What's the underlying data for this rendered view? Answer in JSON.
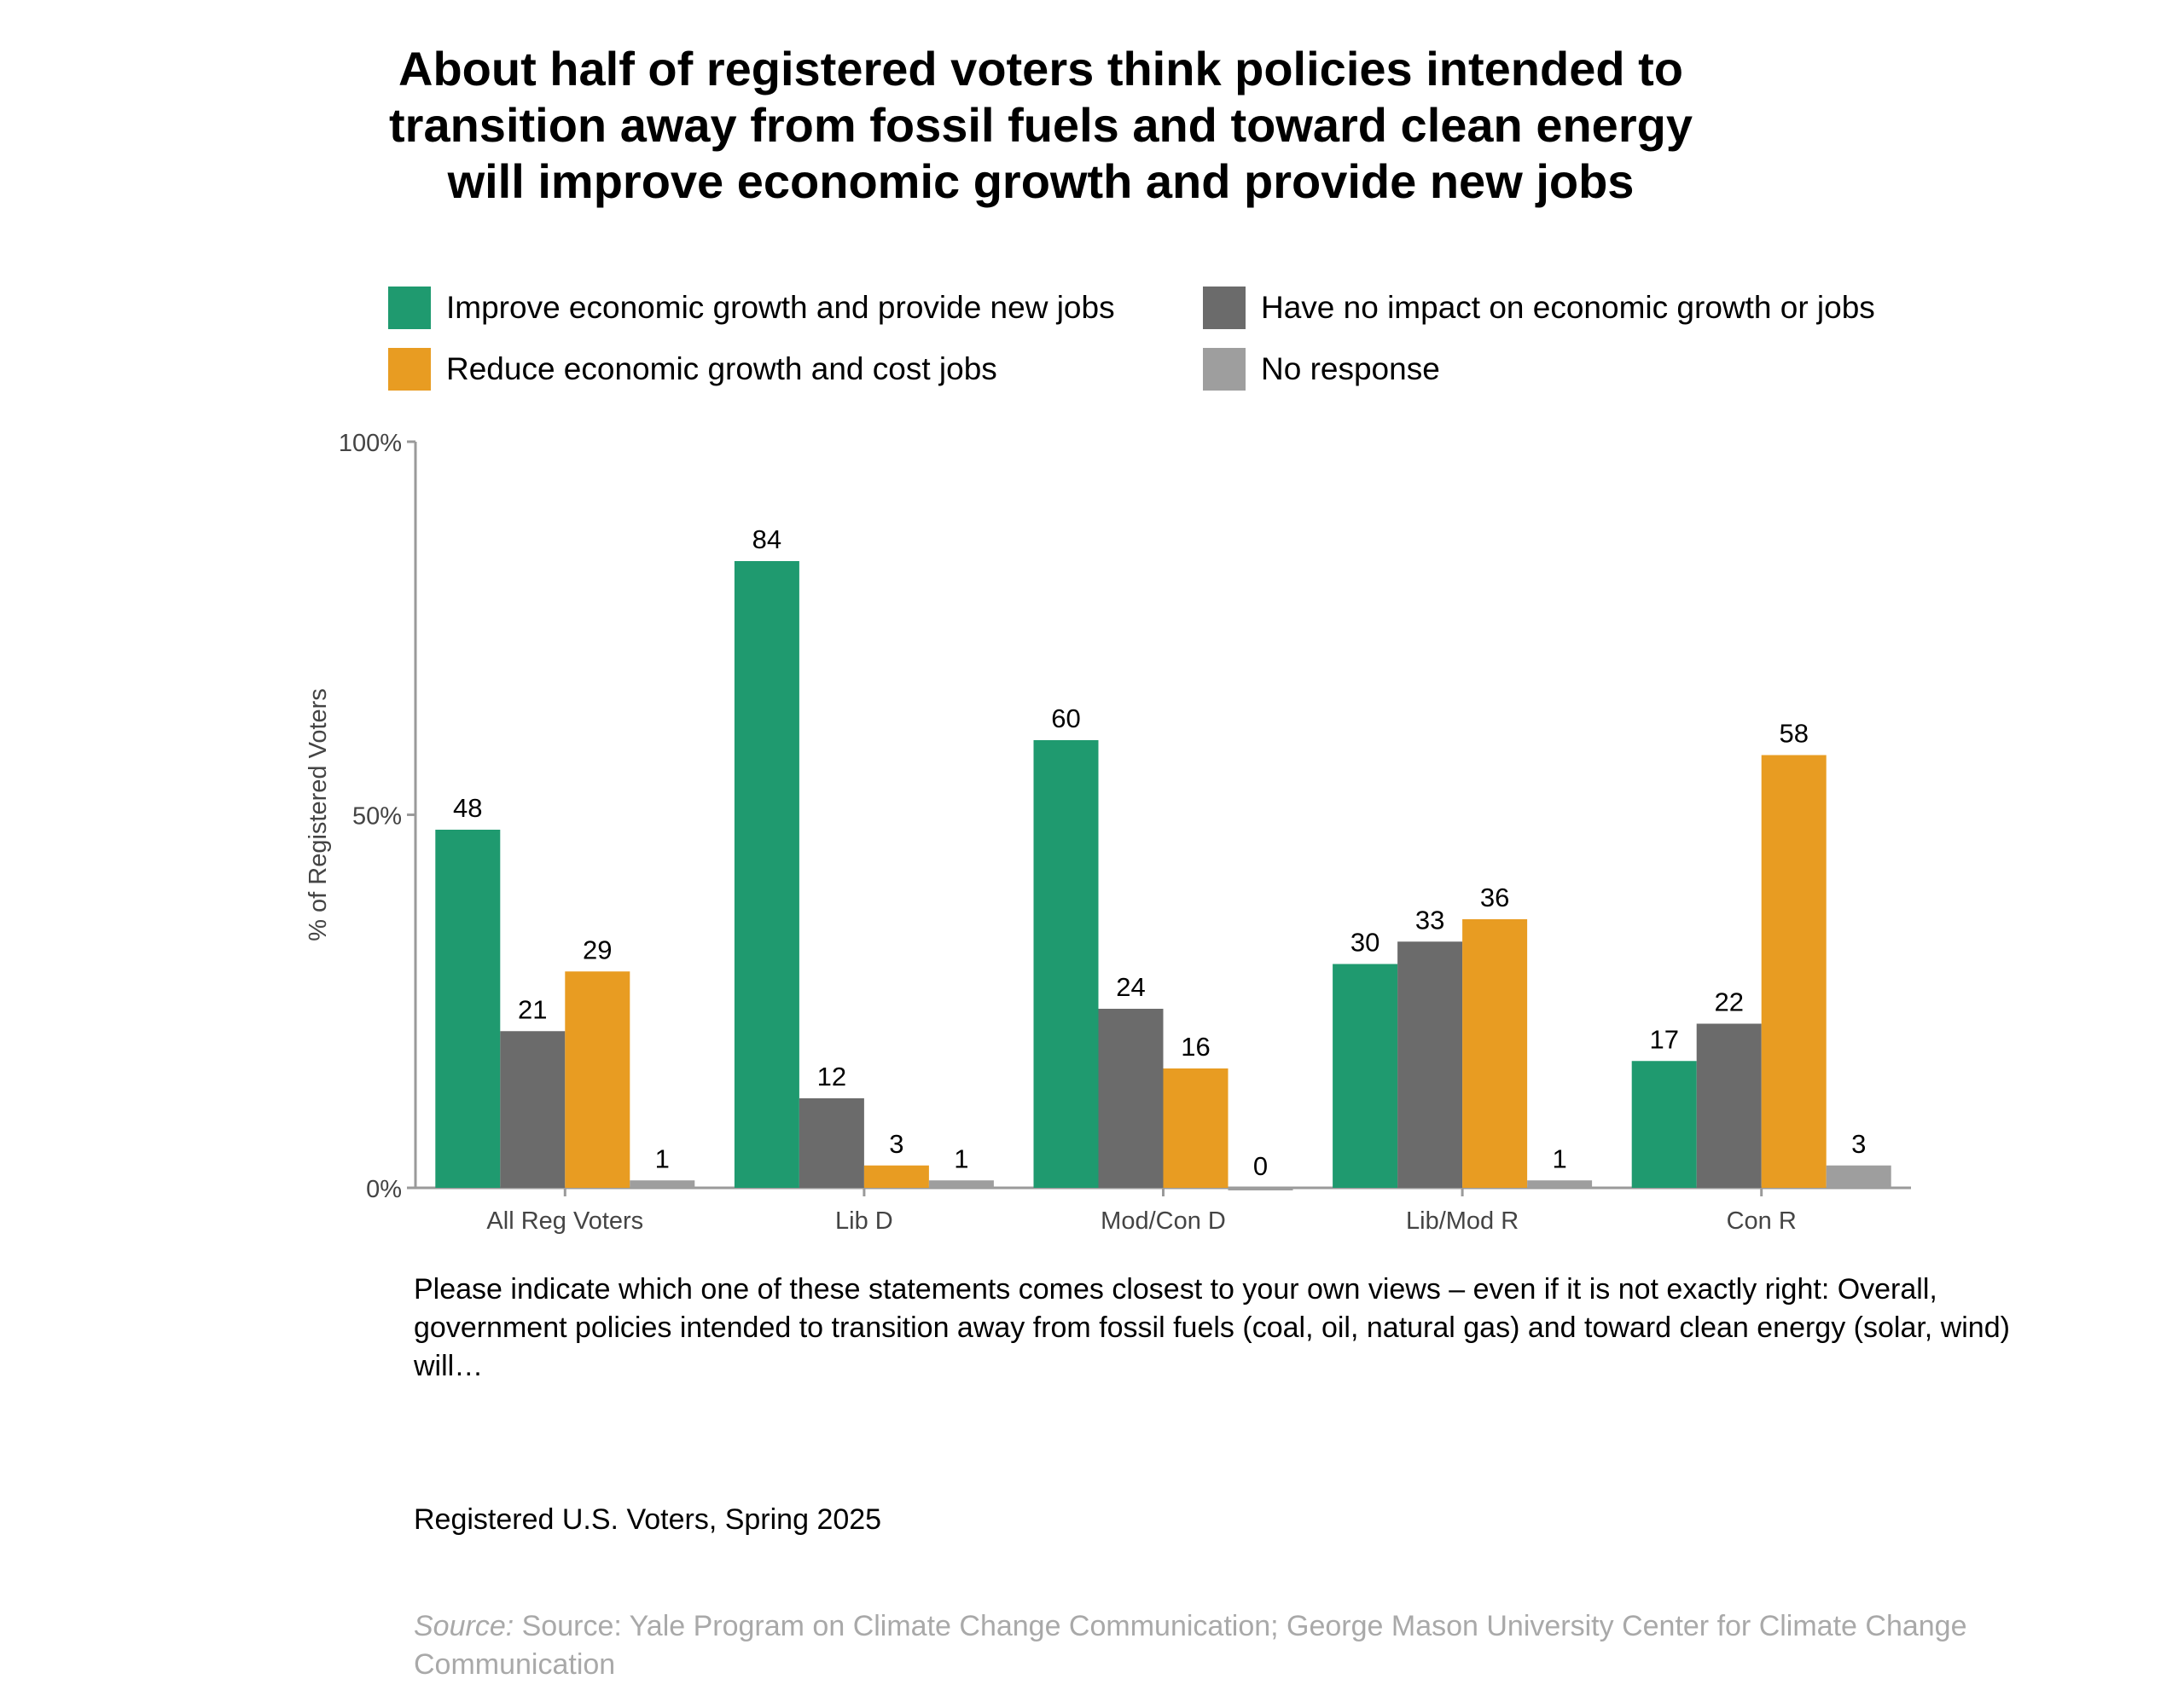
{
  "title_lines": [
    "About half of registered voters think policies intended to",
    "transition away from fossil fuels and toward clean energy",
    "will improve economic growth and provide new jobs"
  ],
  "legend": [
    {
      "label": "Improve economic growth and provide new jobs",
      "color": "#1f9a6f"
    },
    {
      "label": "Have no impact on economic growth or jobs",
      "color": "#6b6b6b"
    },
    {
      "label": "Reduce economic growth and cost jobs",
      "color": "#e89c22"
    },
    {
      "label": "No response",
      "color": "#9e9e9e"
    }
  ],
  "chart_data": {
    "type": "bar",
    "categories": [
      "All Reg Voters",
      "Lib D",
      "Mod/Con D",
      "Lib/Mod R",
      "Con R"
    ],
    "series": [
      {
        "name": "Improve economic growth and provide new jobs",
        "color": "#1f9a6f",
        "values": [
          48,
          84,
          60,
          30,
          17
        ]
      },
      {
        "name": "Have no impact on economic growth or jobs",
        "color": "#6b6b6b",
        "values": [
          21,
          12,
          24,
          33,
          22
        ]
      },
      {
        "name": "Reduce economic growth and cost jobs",
        "color": "#e89c22",
        "values": [
          29,
          3,
          16,
          36,
          58
        ]
      },
      {
        "name": "No response",
        "color": "#9e9e9e",
        "values": [
          1,
          1,
          0,
          1,
          3
        ]
      }
    ],
    "ylabel": "% of Registered Voters",
    "yticks": [
      {
        "value": 0,
        "label": "0%"
      },
      {
        "value": 50,
        "label": "50%"
      },
      {
        "value": 100,
        "label": "100%"
      }
    ],
    "ylim": [
      0,
      100
    ],
    "grid": false,
    "legend_position": "top"
  },
  "question_text": "Please indicate which one of these statements comes closest to your own views – even if it is not exactly right: Overall, government policies intended to transition away from fossil fuels (coal, oil, natural gas) and toward clean energy (solar, wind) will…",
  "population_text": "Registered U.S. Voters, Spring 2025",
  "source": {
    "label": "Source:",
    "text": " Source: Yale Program on Climate Change Communication; George Mason University Center for Climate Change Communication"
  }
}
